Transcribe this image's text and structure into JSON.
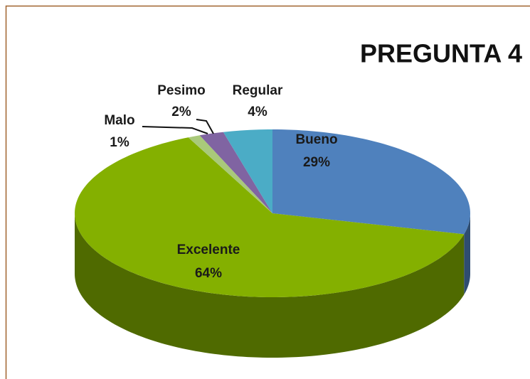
{
  "chart_data": {
    "type": "pie",
    "title": "PREGUNTA 4",
    "categories": [
      "Bueno",
      "Excelente",
      "Malo",
      "Pesimo",
      "Regular"
    ],
    "values": [
      29,
      64,
      1,
      2,
      4
    ],
    "value_labels": [
      "29%",
      "64%",
      "1%",
      "2%",
      "4%"
    ],
    "colors": [
      "#4f81bd",
      "#84b000",
      "#a9c97a",
      "#8064a2",
      "#4bacc6"
    ]
  }
}
